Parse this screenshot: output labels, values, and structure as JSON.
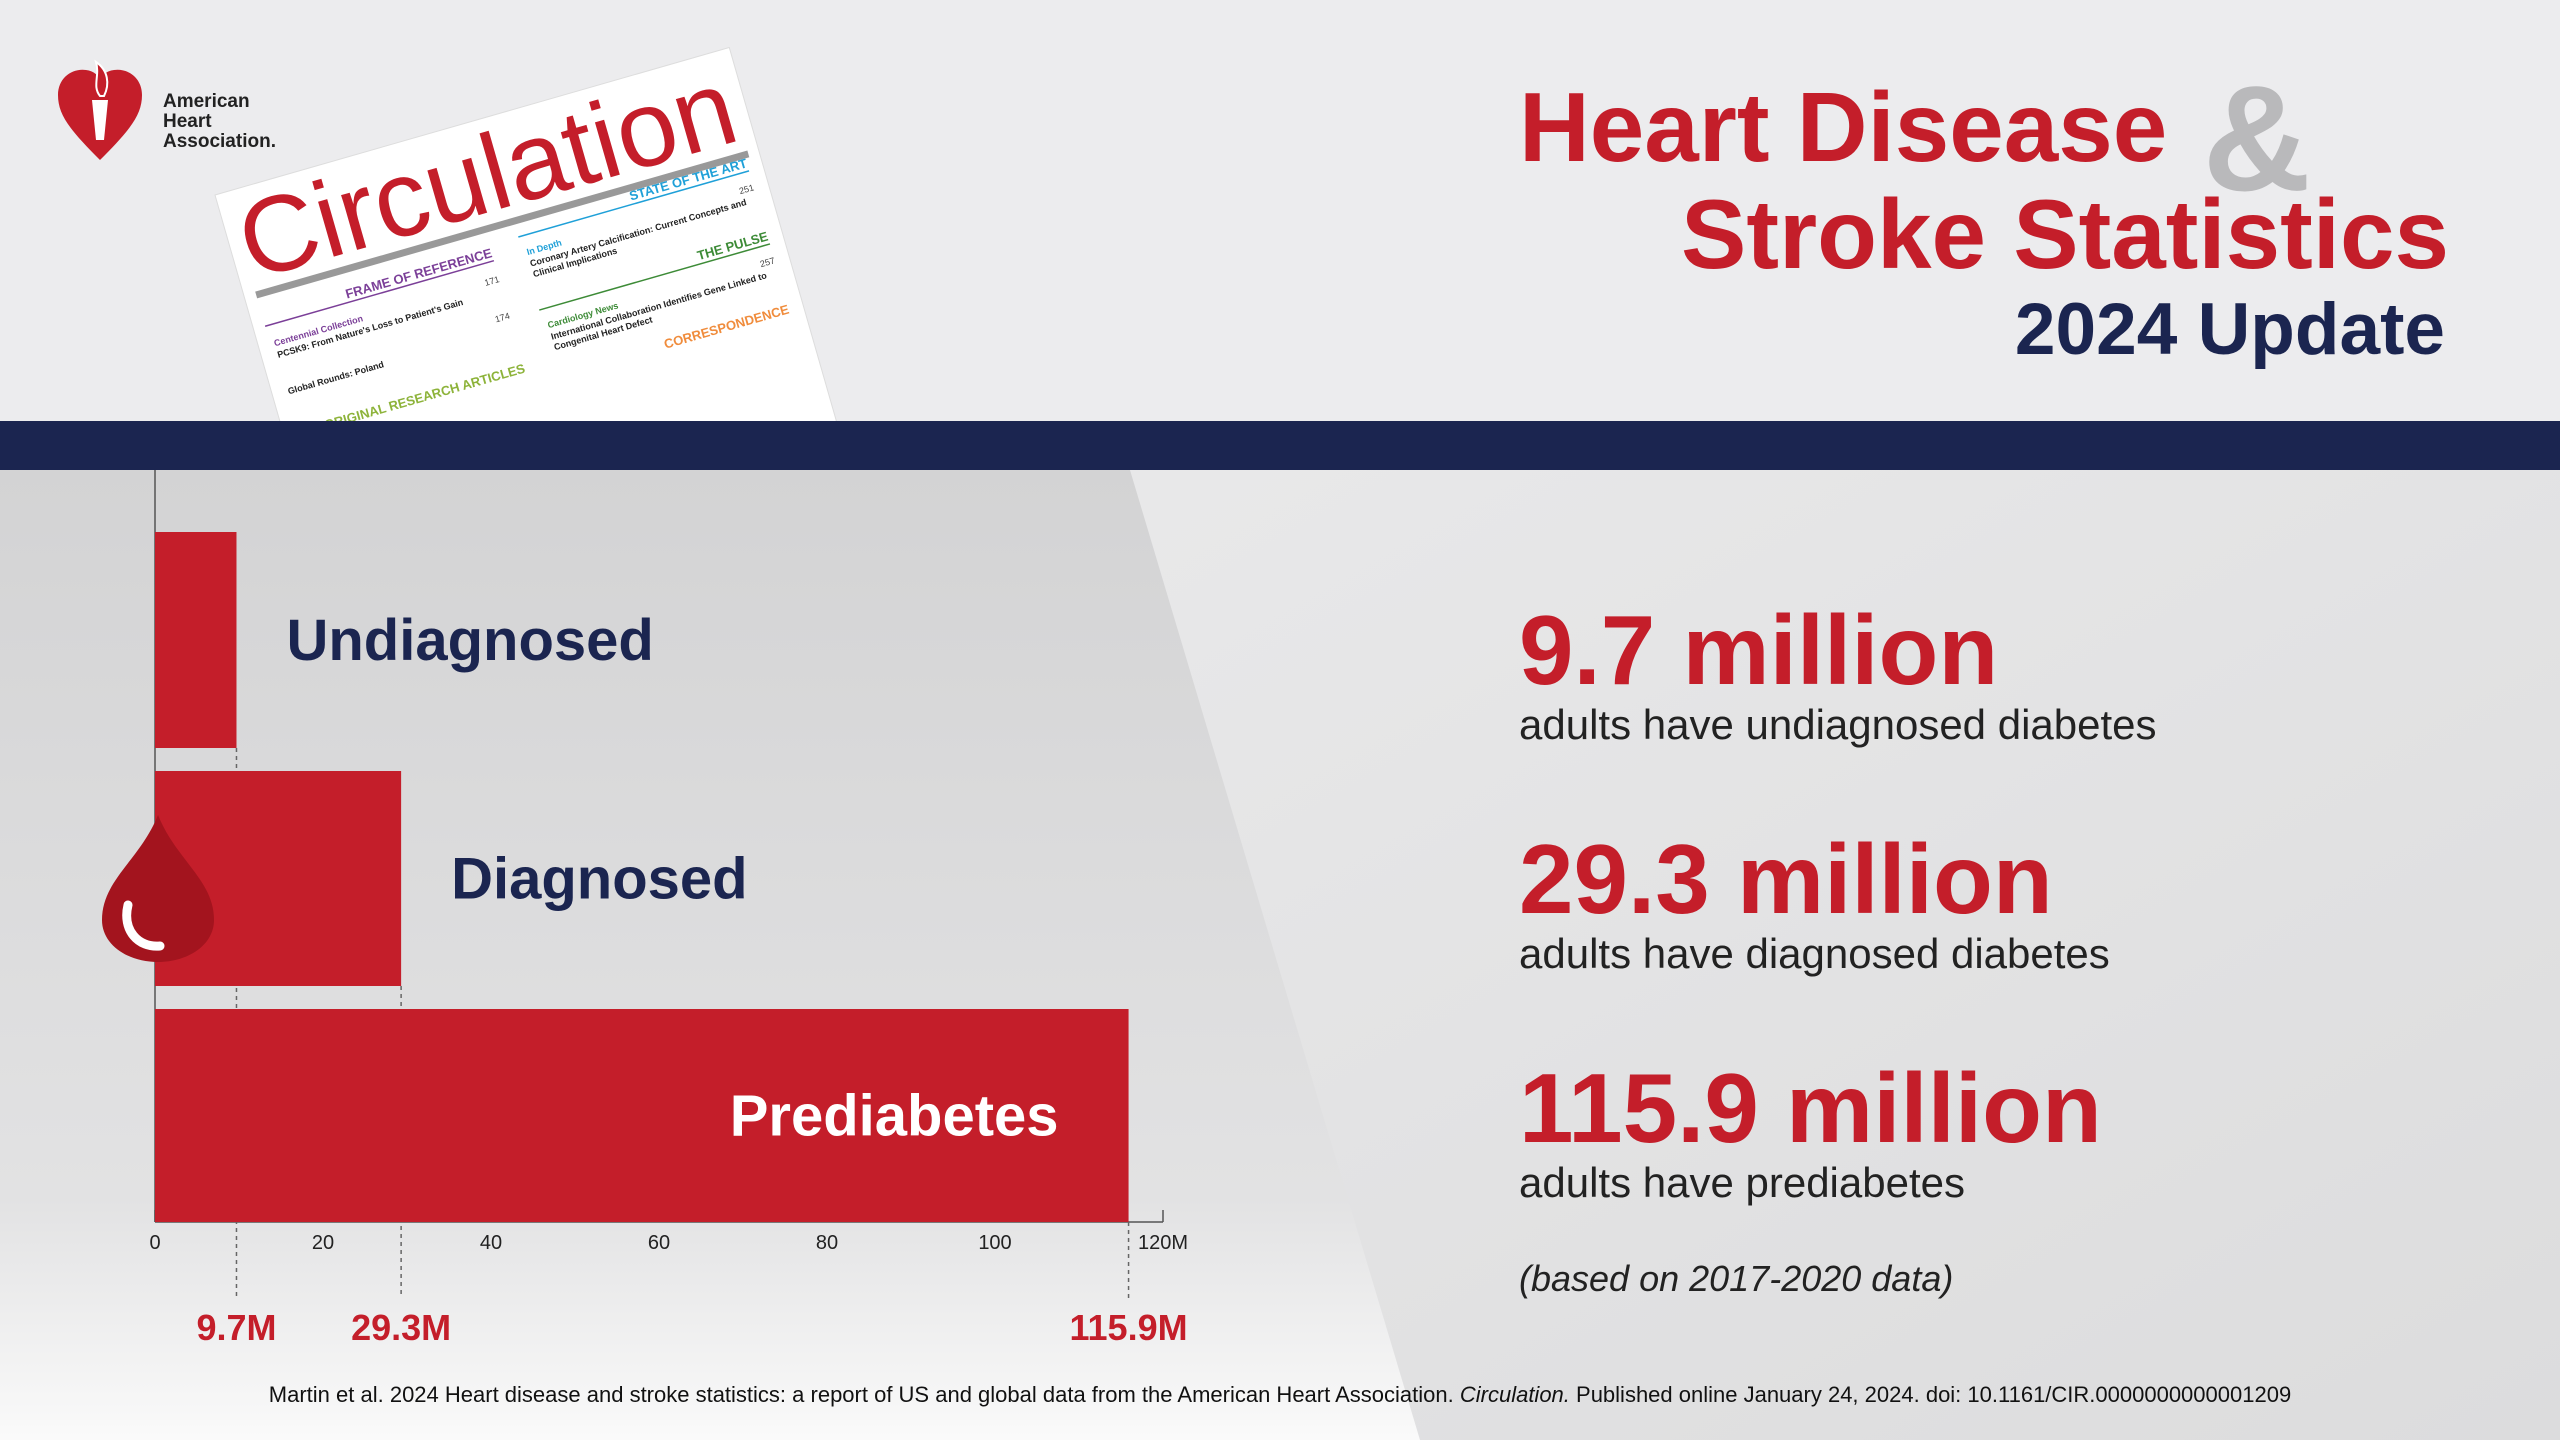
{
  "logo": {
    "line1": "American",
    "line2": "Heart",
    "line3": "Association."
  },
  "cover": {
    "masthead": "Circulation",
    "section1": "FRAME OF REFERENCE",
    "section2": "STATE OF THE ART",
    "section3": "THE PULSE",
    "section4": "ORIGINAL RESEARCH ARTICLES",
    "section5": "CORRESPONDENCE",
    "item1_kicker": "Centennial Collection",
    "item1_title": "PCSK9: From Nature's Loss to Patient's Gain",
    "item1_page": "171",
    "item2_title": "Global Rounds: Poland",
    "item2_page": "174",
    "item3_kicker": "In Depth",
    "item3_title": "Coronary Artery Calcification: Current Concepts and",
    "item3_title2": "Clinical Implications",
    "item3_page": "251",
    "item4_kicker": "Cardiology News",
    "item4_title": "International Collaboration Identifies Gene Linked to",
    "item4_title2": "Congenital Heart Defect",
    "item4_page": "257"
  },
  "header": {
    "line1": "Heart Disease",
    "ampersand": "&",
    "line2": "Stroke Statistics",
    "subtitle": "2024 Update"
  },
  "chart_data": {
    "type": "bar",
    "orientation": "horizontal",
    "categories": [
      "Undiagnosed",
      "Diagnosed",
      "Prediabetes"
    ],
    "values": [
      9.7,
      29.3,
      115.9
    ],
    "value_labels": [
      "9.7M",
      "29.3M",
      "115.9M"
    ],
    "color": "#c41e2a",
    "xlim": [
      0,
      120
    ],
    "xticks": [
      0,
      20,
      40,
      60,
      80,
      100,
      {
        "value": 120,
        "label": "120M"
      }
    ]
  },
  "stats": [
    {
      "value": "9.7 million",
      "text": "adults have undiagnosed diabetes"
    },
    {
      "value": "29.3 million",
      "text": "adults have diagnosed diabetes"
    },
    {
      "value": "115.9 million",
      "text": "adults have prediabetes"
    }
  ],
  "note": "(based on 2017-2020 data)",
  "citation": {
    "before": "Martin et al. 2024 Heart disease and stroke statistics: a report of US and global data from the American Heart Association. ",
    "journal": "Circulation.",
    "after": " Published online January 24, 2024. doi: 10.1161/CIR.0000000000001209"
  }
}
